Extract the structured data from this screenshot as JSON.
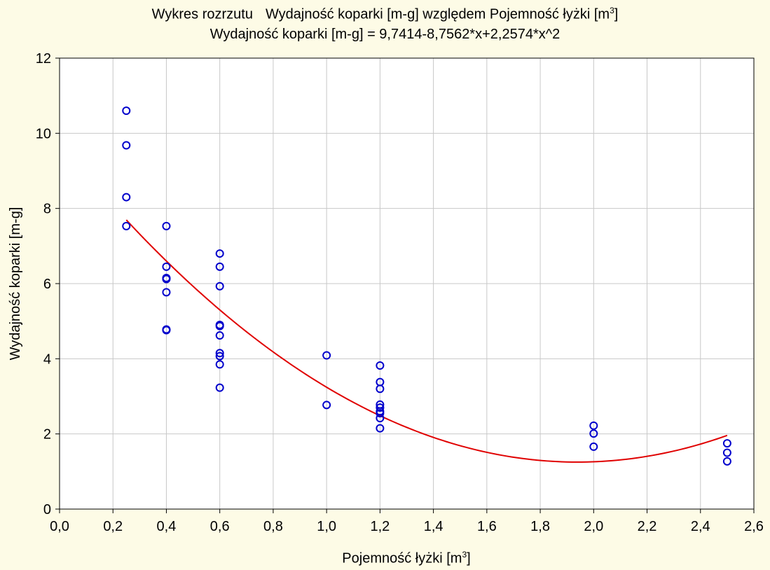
{
  "chart_data": {
    "type": "scatter",
    "title": "Wykres rozrzutu",
    "title_main": "Wydajność koparki [m-g] względem Pojemność łyżki [m",
    "title_sup": "3",
    "title_close": "]",
    "subtitle": "Wydajność koparki [m-g] = 9,7414-8,7562*x+2,2574*x^2",
    "xlabel": "Pojemność łyżki [m",
    "xlabel_sup": "3",
    "xlabel_close": "]",
    "ylabel": "Wydajność koparki [m-g]",
    "xlim": [
      0,
      2.6
    ],
    "ylim": [
      0,
      12
    ],
    "x_ticks": [
      "0,0",
      "0,2",
      "0,4",
      "0,6",
      "0,8",
      "1,0",
      "1,2",
      "1,4",
      "1,6",
      "1,8",
      "2,0",
      "2,2",
      "2,4",
      "2,6"
    ],
    "y_ticks": [
      "0",
      "2",
      "4",
      "6",
      "8",
      "10",
      "12"
    ],
    "grid": true,
    "point_color": "#0000cc",
    "fit_color": "#e00000",
    "fit": {
      "type": "quadratic",
      "a": 9.7414,
      "b": -8.7562,
      "c": 2.2574,
      "x_range": [
        0.25,
        2.5
      ]
    },
    "points": [
      {
        "x": 0.25,
        "y": 10.6
      },
      {
        "x": 0.25,
        "y": 9.68
      },
      {
        "x": 0.25,
        "y": 8.3
      },
      {
        "x": 0.25,
        "y": 7.53
      },
      {
        "x": 0.4,
        "y": 7.53
      },
      {
        "x": 0.4,
        "y": 6.45
      },
      {
        "x": 0.4,
        "y": 6.15
      },
      {
        "x": 0.4,
        "y": 6.12
      },
      {
        "x": 0.4,
        "y": 5.77
      },
      {
        "x": 0.4,
        "y": 4.78
      },
      {
        "x": 0.4,
        "y": 4.76
      },
      {
        "x": 0.6,
        "y": 6.8
      },
      {
        "x": 0.6,
        "y": 6.45
      },
      {
        "x": 0.6,
        "y": 5.93
      },
      {
        "x": 0.6,
        "y": 4.9
      },
      {
        "x": 0.6,
        "y": 4.87
      },
      {
        "x": 0.6,
        "y": 4.62
      },
      {
        "x": 0.6,
        "y": 4.15
      },
      {
        "x": 0.6,
        "y": 4.07
      },
      {
        "x": 0.6,
        "y": 3.85
      },
      {
        "x": 0.6,
        "y": 3.23
      },
      {
        "x": 1.0,
        "y": 4.09
      },
      {
        "x": 1.0,
        "y": 2.77
      },
      {
        "x": 1.2,
        "y": 3.82
      },
      {
        "x": 1.2,
        "y": 3.38
      },
      {
        "x": 1.2,
        "y": 3.2
      },
      {
        "x": 1.2,
        "y": 2.78
      },
      {
        "x": 1.2,
        "y": 2.7
      },
      {
        "x": 1.2,
        "y": 2.6
      },
      {
        "x": 1.2,
        "y": 2.55
      },
      {
        "x": 1.2,
        "y": 2.42
      },
      {
        "x": 1.2,
        "y": 2.15
      },
      {
        "x": 2.0,
        "y": 2.22
      },
      {
        "x": 2.0,
        "y": 2.01
      },
      {
        "x": 2.0,
        "y": 1.66
      },
      {
        "x": 2.5,
        "y": 1.75
      },
      {
        "x": 2.5,
        "y": 1.5
      },
      {
        "x": 2.5,
        "y": 1.27
      }
    ]
  }
}
